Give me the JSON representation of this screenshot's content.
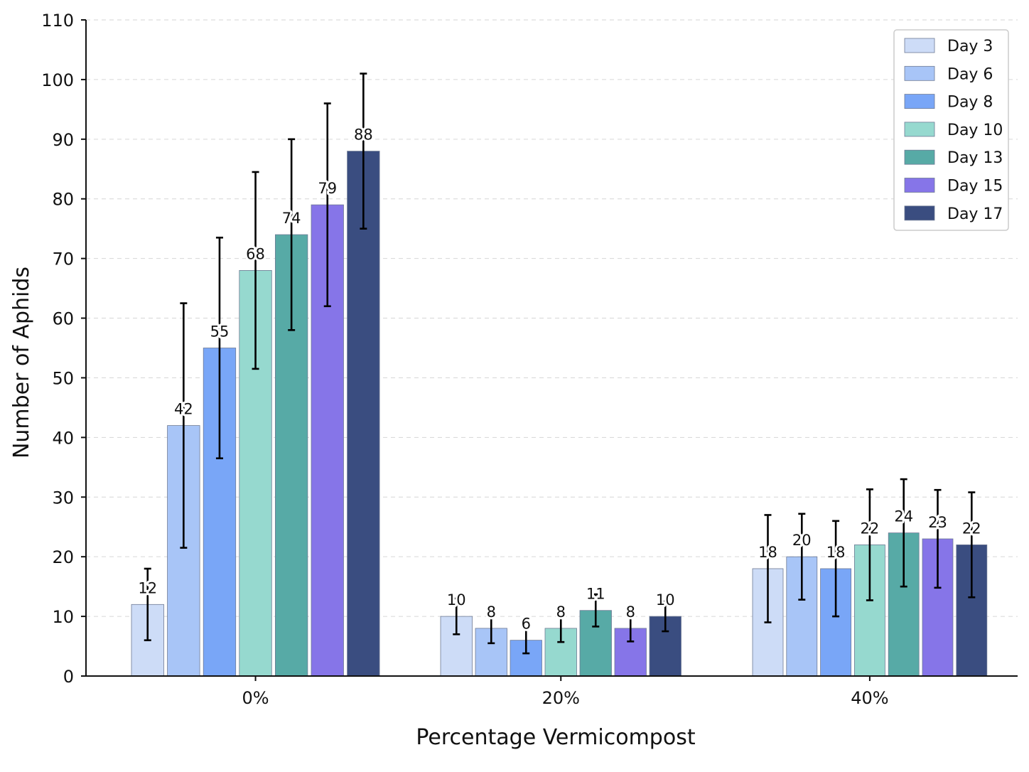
{
  "chart_data": {
    "type": "bar",
    "categories": [
      "0%",
      "20%",
      "40%"
    ],
    "xlabel": "Percentage Vermicompost",
    "ylabel": "Number of Aphids",
    "ylim": [
      0,
      110
    ],
    "yticks": [
      0,
      10,
      20,
      30,
      40,
      50,
      60,
      70,
      80,
      90,
      100,
      110
    ],
    "grid": "horizontal dashed",
    "legend_position": "top-right",
    "series": [
      {
        "name": "Day 3",
        "color": "#cddcf7",
        "values": [
          12,
          10,
          18
        ],
        "labels": [
          "12",
          "10",
          "18"
        ],
        "err": [
          6,
          3,
          9
        ]
      },
      {
        "name": "Day 6",
        "color": "#a8c5f7",
        "values": [
          42,
          8,
          20
        ],
        "labels": [
          "42",
          "8",
          "20"
        ],
        "err": [
          20.5,
          2.5,
          7.2
        ]
      },
      {
        "name": "Day 8",
        "color": "#79a6f7",
        "values": [
          55,
          6,
          18
        ],
        "labels": [
          "55",
          "6",
          "18"
        ],
        "err": [
          18.5,
          2.2,
          8
        ]
      },
      {
        "name": "Day 10",
        "color": "#96d9cf",
        "values": [
          68,
          8,
          22
        ],
        "labels": [
          "68",
          "8",
          "22"
        ],
        "err": [
          16.5,
          2.3,
          9.3
        ]
      },
      {
        "name": "Day 13",
        "color": "#57aaa6",
        "values": [
          74,
          11,
          24
        ],
        "labels": [
          "74",
          "11",
          "24"
        ],
        "err": [
          16,
          2.7,
          9
        ]
      },
      {
        "name": "Day 15",
        "color": "#8675e8",
        "values": [
          79,
          8,
          23
        ],
        "labels": [
          "79",
          "8",
          "23"
        ],
        "err": [
          17,
          2.2,
          8.2
        ]
      },
      {
        "name": "Day 17",
        "color": "#3a4d80",
        "values": [
          88,
          10,
          22
        ],
        "labels": [
          "88",
          "10",
          "22"
        ],
        "err": [
          13,
          2.5,
          8.8
        ]
      }
    ]
  }
}
